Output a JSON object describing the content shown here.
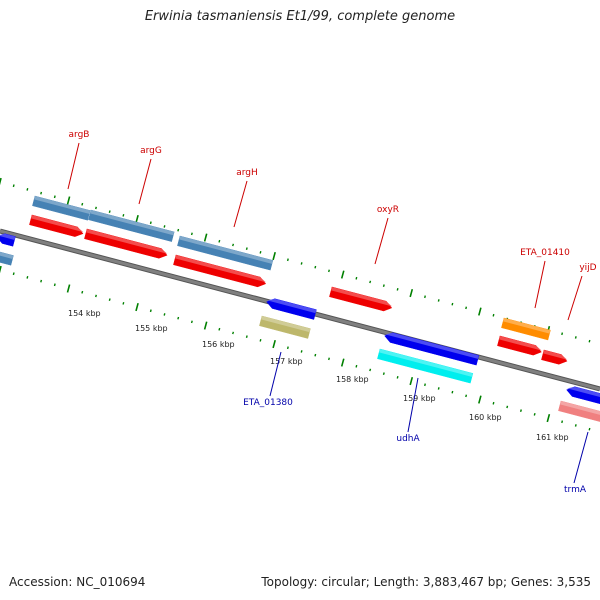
{
  "title": "Erwinia tasmaniensis Et1/99, complete genome",
  "footer": {
    "accession": "Accession: NC_010694",
    "summary": "Topology: circular; Length: 3,883,467 bp; Genes: 3,535"
  },
  "colors": {
    "backbone": "#808080",
    "label_plus": "#cc0000",
    "label_minus": "#0000aa",
    "tick": "#008000"
  },
  "scale_labels": [
    "154 kbp",
    "155 kbp",
    "156 kbp",
    "157 kbp",
    "158 kbp",
    "159 kbp",
    "160 kbp",
    "161 kbp"
  ],
  "gene_labels": [
    {
      "name": "argB",
      "strand": "plus"
    },
    {
      "name": "argG",
      "strand": "plus"
    },
    {
      "name": "argH",
      "strand": "plus"
    },
    {
      "name": "oxyR",
      "strand": "plus"
    },
    {
      "name": "ETA_01410",
      "strand": "plus"
    },
    {
      "name": "yijD",
      "strand": "plus"
    },
    {
      "name": "ETA_01380",
      "strand": "minus"
    },
    {
      "name": "udhA",
      "strand": "minus"
    },
    {
      "name": "trmA",
      "strand": "minus"
    }
  ],
  "features": [
    {
      "name": "feature-blue-left-top",
      "color": "#0000ee"
    },
    {
      "name": "feature-steelblue-left",
      "color": "#4682b4"
    },
    {
      "name": "feature-steelblue-argB",
      "color": "#4682b4"
    },
    {
      "name": "feature-red-argB",
      "color": "#ee0000"
    },
    {
      "name": "feature-steelblue-argG",
      "color": "#4682b4"
    },
    {
      "name": "feature-red-argG",
      "color": "#ee0000"
    },
    {
      "name": "feature-steelblue-argH",
      "color": "#4682b4"
    },
    {
      "name": "feature-red-argH",
      "color": "#ee0000"
    },
    {
      "name": "feature-red-oxyR",
      "color": "#ee0000"
    },
    {
      "name": "feature-blue-ETA_01380",
      "color": "#0000ee"
    },
    {
      "name": "feature-khaki-ETA_01380",
      "color": "#bdb76b"
    },
    {
      "name": "feature-blue-udhA",
      "color": "#0000ee"
    },
    {
      "name": "feature-cyan-udhA",
      "color": "#00eeee"
    },
    {
      "name": "feature-orange-ETA_01410",
      "color": "#ff8c00"
    },
    {
      "name": "feature-red-ETA_01410",
      "color": "#ee0000"
    },
    {
      "name": "feature-red-yijD",
      "color": "#ee0000"
    },
    {
      "name": "feature-blue-trmA",
      "color": "#0000ee"
    },
    {
      "name": "feature-pink-trmA",
      "color": "#f08080"
    }
  ]
}
